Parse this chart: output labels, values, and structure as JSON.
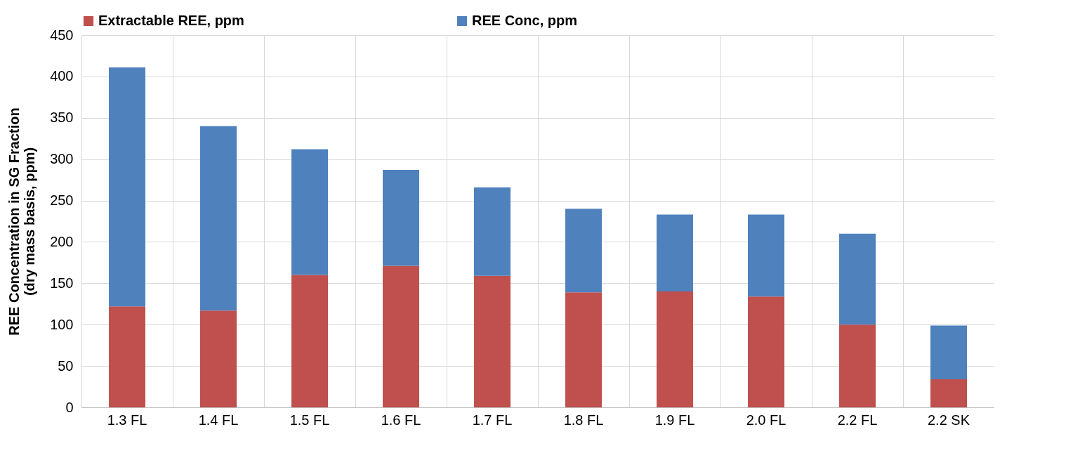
{
  "chart_data": {
    "type": "bar",
    "stacked": true,
    "ylabel": "REE Concentration in SG Fraction\n(dry mass basis, ppm)",
    "categories": [
      "1.3 FL",
      "1.4 FL",
      "1.5 FL",
      "1.6 FL",
      "1.7 FL",
      "1.8 FL",
      "1.9 FL",
      "2.0 FL",
      "2.2 FL",
      "2.2 SK"
    ],
    "series": [
      {
        "name": "Extractable REE, ppm",
        "color": "#c0504d",
        "values": [
          122,
          117,
          160,
          171,
          159,
          139,
          140,
          134,
          100,
          34
        ]
      },
      {
        "name": "REE Conc, ppm",
        "color": "#4f81bd",
        "values": [
          289,
          223,
          152,
          116,
          107,
          101,
          93,
          99,
          110,
          65
        ]
      }
    ],
    "ylim": [
      0,
      450
    ],
    "yticks": [
      0,
      50,
      100,
      150,
      200,
      250,
      300,
      350,
      400,
      450
    ],
    "grid": true,
    "legend": "top"
  }
}
